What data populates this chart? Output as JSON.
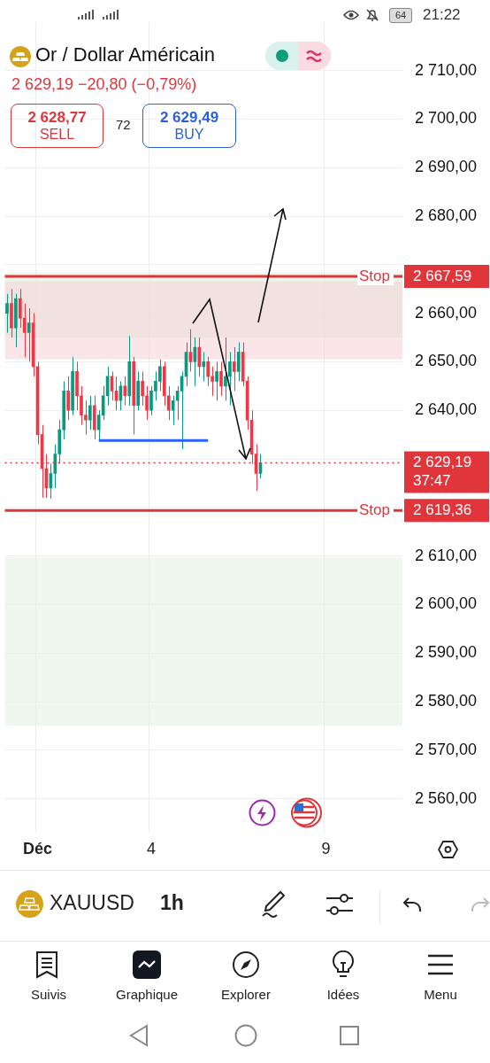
{
  "chart_data": {
    "type": "candlestick",
    "title": "Or / Dollar Américain",
    "subtitle": "2 629,19  −20,80 (−0,79%)",
    "categories": [
      null,
      null,
      null,
      null,
      null,
      null,
      null,
      "Déc",
      null,
      null,
      null,
      null,
      null,
      null,
      null,
      null,
      null,
      null,
      null,
      null,
      null,
      null,
      null,
      null,
      null,
      null,
      null,
      null,
      null,
      null,
      null,
      null,
      null,
      "4",
      null,
      null,
      null,
      null,
      null,
      null,
      null,
      null,
      null,
      null,
      null,
      null,
      null,
      null,
      null,
      null,
      null,
      null,
      null,
      null,
      null,
      null,
      null,
      null,
      null,
      null,
      null,
      null,
      null,
      null,
      null,
      null,
      null,
      null,
      null,
      null,
      null,
      null,
      null,
      "9",
      null,
      null,
      null,
      null,
      null,
      null,
      null,
      null,
      null,
      null,
      null,
      null,
      null,
      null,
      null,
      null,
      null
    ],
    "ohlc": [
      [
        2660,
        2664,
        2656,
        2662
      ],
      [
        2662,
        2665,
        2655,
        2657
      ],
      [
        2657,
        2664,
        2653,
        2663
      ],
      [
        2663,
        2665,
        2657,
        2659
      ],
      [
        2659,
        2662,
        2651,
        2656
      ],
      [
        2656,
        2661,
        2650,
        2658
      ],
      [
        2658,
        2660,
        2647,
        2649
      ],
      [
        2649,
        2650,
        2633,
        2635
      ],
      [
        2635,
        2637,
        2622,
        2628
      ],
      [
        2628,
        2631,
        2622,
        2624
      ],
      [
        2624,
        2629,
        2621.8,
        2627
      ],
      [
        2627,
        2633,
        2624,
        2631
      ],
      [
        2631,
        2638,
        2629,
        2636
      ],
      [
        2636,
        2646,
        2634,
        2644
      ],
      [
        2644,
        2647,
        2638,
        2640
      ],
      [
        2640,
        2651,
        2639,
        2648
      ],
      [
        2648,
        2650,
        2640,
        2643
      ],
      [
        2643,
        2645,
        2637,
        2639
      ],
      [
        2639,
        2642,
        2635,
        2638
      ],
      [
        2638,
        2643,
        2636,
        2641
      ],
      [
        2641,
        2643,
        2634,
        2636
      ],
      [
        2636,
        2640,
        2634,
        2639
      ],
      [
        2639,
        2645,
        2638,
        2643
      ],
      [
        2643,
        2649,
        2641,
        2647
      ],
      [
        2647,
        2648,
        2642,
        2644
      ],
      [
        2644,
        2647,
        2640,
        2642
      ],
      [
        2642,
        2646,
        2640,
        2645
      ],
      [
        2645,
        2647,
        2641,
        2643
      ],
      [
        2643,
        2655.3,
        2641,
        2650
      ],
      [
        2650,
        2651,
        2635,
        2641
      ],
      [
        2641,
        2648,
        2640,
        2646
      ],
      [
        2646,
        2648,
        2641,
        2643
      ],
      [
        2643,
        2645,
        2638,
        2640
      ],
      [
        2640,
        2645,
        2639,
        2644
      ],
      [
        2644,
        2648,
        2642,
        2646
      ],
      [
        2646,
        2650.5,
        2644,
        2649
      ],
      [
        2649,
        2650,
        2641,
        2643
      ],
      [
        2643,
        2645,
        2638,
        2640
      ],
      [
        2640,
        2643,
        2637,
        2642
      ],
      [
        2642,
        2645,
        2638,
        2644
      ],
      [
        2644,
        2648,
        2632,
        2647
      ],
      [
        2647,
        2654,
        2645,
        2652
      ],
      [
        2652,
        2656.7,
        2648,
        2650
      ],
      [
        2650,
        2655,
        2645,
        2653
      ],
      [
        2653,
        2655,
        2647,
        2649
      ],
      [
        2649,
        2652,
        2646,
        2650
      ],
      [
        2650,
        2651,
        2645,
        2647
      ],
      [
        2647,
        2649,
        2643,
        2646
      ],
      [
        2646,
        2650,
        2642,
        2648
      ],
      [
        2648,
        2650,
        2643,
        2645
      ],
      [
        2645,
        2655,
        2642,
        2647
      ],
      [
        2647,
        2652,
        2641,
        2650
      ],
      [
        2650,
        2653,
        2644,
        2648
      ],
      [
        2648,
        2654,
        2646,
        2652
      ],
      [
        2652,
        2654,
        2645,
        2646
      ],
      [
        2646,
        2647,
        2636,
        2638
      ],
      [
        2638,
        2640,
        2629,
        2631
      ],
      [
        2631,
        2633,
        2623.4,
        2627
      ],
      [
        2627,
        2631,
        2626,
        2629.19
      ],
      null,
      null,
      null,
      null,
      null,
      null,
      null,
      null,
      null,
      null,
      null,
      null,
      null,
      null,
      null,
      null,
      null,
      null,
      null,
      null,
      null,
      null,
      null,
      null,
      null,
      null,
      null,
      null,
      null,
      null,
      null,
      null
    ],
    "series": [
      {
        "type": "line",
        "color": "#2962ff",
        "values": [
          null,
          null,
          null,
          null,
          null,
          null,
          null,
          null,
          null,
          null,
          null,
          null,
          null,
          null,
          null,
          null,
          null,
          null,
          null,
          null,
          null,
          2633.8,
          null,
          null,
          null,
          null,
          null,
          null,
          null,
          null,
          null,
          null,
          null,
          null,
          null,
          null,
          null,
          null,
          null,
          null,
          null,
          null,
          null,
          null,
          null,
          null,
          2633.8,
          null,
          null,
          null,
          null,
          null,
          null,
          null,
          null,
          null,
          null,
          null,
          null,
          null,
          null,
          null,
          null,
          null,
          null,
          null,
          null,
          null,
          null,
          null,
          null,
          null,
          null,
          null,
          null,
          null,
          null,
          null,
          null,
          null,
          null,
          null,
          null,
          null,
          null,
          null,
          null,
          null,
          null,
          null,
          null
        ]
      }
    ],
    "ylim": [
      2553,
      2720
    ],
    "yticks": [
      {
        "value": 2560,
        "label": "2 560,00"
      },
      {
        "value": 2570,
        "label": "2 570,00"
      },
      {
        "value": 2580,
        "label": "2 580,00"
      },
      {
        "value": 2590,
        "label": "2 590,00"
      },
      {
        "value": 2600,
        "label": "2 600,00"
      },
      {
        "value": 2610,
        "label": "2 610,00"
      },
      {
        "value": 2620,
        "label": null
      },
      {
        "value": 2630,
        "label": null
      },
      {
        "value": 2640,
        "label": "2 640,00"
      },
      {
        "value": 2650,
        "label": "2 650,00"
      },
      {
        "value": 2660,
        "label": "2 660,00"
      },
      {
        "value": 2670,
        "label": null
      },
      {
        "value": 2680,
        "label": "2 680,00"
      },
      {
        "value": 2690,
        "label": "2 690,00"
      },
      {
        "value": 2700,
        "label": "2 700,00"
      },
      {
        "value": 2710,
        "label": "2 710,00"
      }
    ],
    "ref_lines": [
      {
        "axis": "y",
        "value": 2667.59,
        "label": "Stop",
        "color": "#e0353b",
        "line_style": "solid"
      },
      {
        "axis": "y",
        "value": 2619.36,
        "label": "Stop",
        "color": "#e0353b",
        "line_style": "solid"
      },
      {
        "axis": "y",
        "value": 2629.19,
        "color": "#e0353b",
        "line_style": "dotted"
      }
    ],
    "bands": [
      {
        "axis": "y",
        "from": 2655,
        "to": 2668.3,
        "color": "#d8eed8"
      },
      {
        "axis": "y",
        "from": 2650.5,
        "to": 2666.5,
        "color": "#f6d6d8"
      },
      {
        "axis": "y",
        "from": 2575,
        "to": 2609.7,
        "color": "#e3f3e4"
      }
    ],
    "annotations": [
      "2 628,77",
      "SELL",
      "72",
      "2 629,49",
      "BUY",
      "21:22",
      "64",
      "XAUUSD",
      "1h",
      "Suivis",
      "Graphique",
      "Explorer",
      "Idées",
      "Menu",
      "2 667,59",
      "2 629,19",
      "37:47",
      "2 619,36"
    ],
    "grid": true,
    "legend": false
  }
}
